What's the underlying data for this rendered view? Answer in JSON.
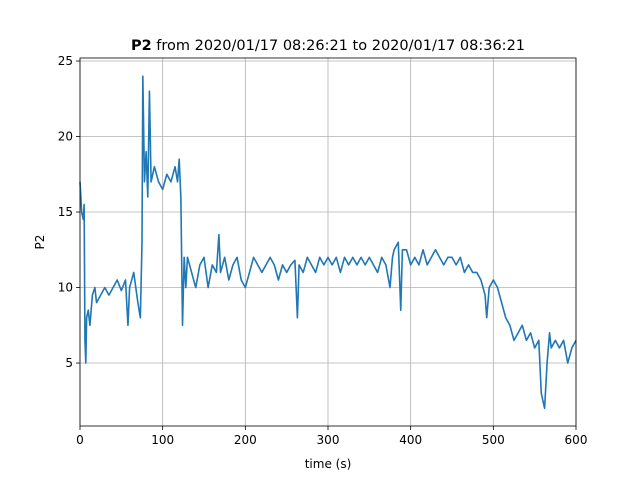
{
  "chart_data": {
    "type": "line",
    "title_bold": "P2",
    "title": "from 2020/01/17 08:26:21 to 2020/01/17 08:36:21",
    "xlabel": "time (s)",
    "ylabel": "P2",
    "x": [
      0,
      2,
      4,
      5,
      6,
      7,
      8,
      10,
      12,
      15,
      18,
      20,
      25,
      30,
      35,
      40,
      45,
      50,
      55,
      58,
      60,
      65,
      70,
      73,
      75,
      76,
      78,
      80,
      82,
      84,
      86,
      90,
      95,
      100,
      105,
      110,
      115,
      118,
      120,
      122,
      124,
      126,
      128,
      130,
      135,
      140,
      145,
      150,
      155,
      160,
      165,
      168,
      170,
      175,
      180,
      185,
      190,
      195,
      200,
      205,
      210,
      215,
      220,
      225,
      230,
      235,
      240,
      245,
      250,
      255,
      260,
      263,
      265,
      270,
      275,
      280,
      285,
      290,
      295,
      300,
      305,
      310,
      315,
      320,
      325,
      330,
      335,
      340,
      345,
      350,
      355,
      360,
      365,
      370,
      375,
      378,
      380,
      385,
      388,
      390,
      395,
      400,
      405,
      410,
      415,
      420,
      425,
      430,
      435,
      440,
      445,
      450,
      455,
      460,
      465,
      470,
      475,
      480,
      485,
      490,
      492,
      495,
      500,
      505,
      510,
      515,
      520,
      525,
      530,
      535,
      540,
      545,
      550,
      555,
      558,
      562,
      565,
      568,
      570,
      575,
      580,
      585,
      590,
      595,
      600
    ],
    "series": [
      {
        "color": "#1f77b4",
        "values": [
          17,
          15,
          14.5,
          15.5,
          6.5,
          5,
          8,
          8.5,
          7.5,
          9.5,
          10,
          9,
          9.5,
          10,
          9.5,
          10,
          10.5,
          9.8,
          10.5,
          7.5,
          10,
          11,
          9,
          8,
          13,
          24,
          17,
          19,
          16,
          23,
          17,
          18,
          17,
          16.5,
          17.5,
          17,
          18,
          17,
          18.5,
          16,
          7.5,
          12,
          10,
          12,
          11,
          10,
          11.5,
          12,
          10,
          11.5,
          11,
          13.5,
          11,
          12,
          10.5,
          11.5,
          12,
          10.5,
          10,
          11,
          12,
          11.5,
          11,
          11.5,
          12,
          11.5,
          10.5,
          11.5,
          11,
          11.5,
          11.8,
          8,
          11.5,
          11,
          12,
          11.5,
          11,
          12,
          11.5,
          12,
          11.5,
          12,
          11,
          12,
          11.5,
          12,
          11.5,
          12,
          11.5,
          12,
          11.5,
          11,
          12,
          11.5,
          10,
          12,
          12.5,
          13,
          8.5,
          12.5,
          12.5,
          11.5,
          12,
          11.5,
          12.5,
          11.5,
          12,
          12.5,
          12,
          11.5,
          12,
          12,
          11.5,
          12,
          11,
          11.5,
          11,
          11,
          10.5,
          9.5,
          8,
          10,
          10.5,
          10,
          9,
          8,
          7.5,
          6.5,
          7,
          7.5,
          6.5,
          7,
          6,
          6.5,
          3,
          2,
          5,
          7,
          6,
          6.5,
          6,
          6.5,
          5,
          6,
          6.5
        ]
      }
    ],
    "xlim": [
      0,
      600
    ],
    "xticks": [
      0,
      100,
      200,
      300,
      400,
      500,
      600
    ],
    "ylim": [
      0.83,
      25.2
    ],
    "yticks": [
      5,
      10,
      15,
      20,
      25
    ],
    "grid": true
  }
}
